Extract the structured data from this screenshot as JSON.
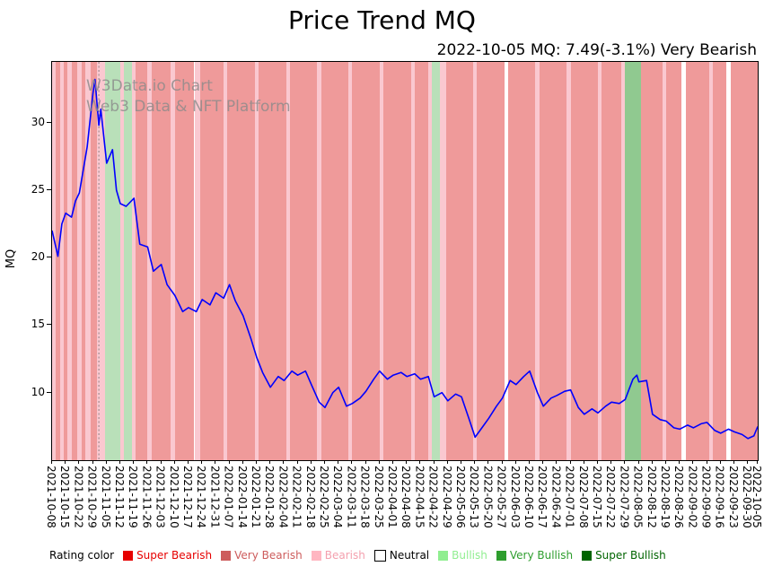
{
  "title": "Price Trend MQ",
  "subtitle": "2022-10-05 MQ: 7.49(-3.1%) Very Bearish",
  "watermark": {
    "line1": "W3Data.io Chart",
    "line2": "Web3 Data & NFT Platform"
  },
  "legend": {
    "label": "Rating color",
    "items": [
      {
        "key": "super_bearish",
        "label": "Super Bearish",
        "color": "#e60000",
        "text_color": "#e60000"
      },
      {
        "key": "very_bearish",
        "label": "Very Bearish",
        "color": "#cd5c5c",
        "text_color": "#cd5c5c"
      },
      {
        "key": "bearish",
        "label": "Bearish",
        "color": "#ffb6c1",
        "text_color": "#f4a0ae"
      },
      {
        "key": "neutral",
        "label": "Neutral",
        "color": "#ffffff",
        "text_color": "#000000"
      },
      {
        "key": "bullish",
        "label": "Bullish",
        "color": "#90ee90",
        "text_color": "#90ee90"
      },
      {
        "key": "very_bullish",
        "label": "Very Bullish",
        "color": "#2e9e2e",
        "text_color": "#2e9e2e"
      },
      {
        "key": "super_bullish",
        "label": "Super Bullish",
        "color": "#006400",
        "text_color": "#006400"
      }
    ]
  },
  "chart_data": {
    "type": "line",
    "title": "Price Trend MQ",
    "xlabel": "",
    "ylabel": "MQ",
    "ylim": [
      5.0,
      34.5
    ],
    "yticks": [
      10,
      15,
      20,
      25,
      30
    ],
    "line_color": "#0000ff",
    "marker_line": {
      "date": "2021-11-01",
      "color": "#666666"
    },
    "xticks": [
      "2021-10-08",
      "2021-10-15",
      "2021-10-22",
      "2021-10-29",
      "2021-11-05",
      "2021-11-12",
      "2021-11-19",
      "2021-11-26",
      "2021-12-03",
      "2021-12-10",
      "2021-12-17",
      "2021-12-24",
      "2021-12-31",
      "2022-01-07",
      "2022-01-14",
      "2022-01-21",
      "2022-01-28",
      "2022-02-04",
      "2022-02-11",
      "2022-02-18",
      "2022-02-25",
      "2022-03-04",
      "2022-03-11",
      "2022-03-18",
      "2022-03-25",
      "2022-04-01",
      "2022-04-08",
      "2022-04-15",
      "2022-04-22",
      "2022-04-29",
      "2022-05-06",
      "2022-05-13",
      "2022-05-20",
      "2022-05-27",
      "2022-06-03",
      "2022-06-10",
      "2022-06-17",
      "2022-06-24",
      "2022-07-01",
      "2022-07-08",
      "2022-07-15",
      "2022-07-22",
      "2022-07-29",
      "2022-08-05",
      "2022-08-12",
      "2022-08-19",
      "2022-08-26",
      "2022-09-02",
      "2022-09-09",
      "2022-09-16",
      "2022-09-23",
      "2022-09-30",
      "2022-10-05"
    ],
    "series": {
      "name": "MQ",
      "x": [
        "2021-10-08",
        "2021-10-11",
        "2021-10-13",
        "2021-10-15",
        "2021-10-18",
        "2021-10-20",
        "2021-10-22",
        "2021-10-26",
        "2021-10-29",
        "2021-10-30",
        "2021-11-01",
        "2021-11-02",
        "2021-11-05",
        "2021-11-08",
        "2021-11-10",
        "2021-11-12",
        "2021-11-15",
        "2021-11-19",
        "2021-11-22",
        "2021-11-26",
        "2021-11-29",
        "2021-12-03",
        "2021-12-06",
        "2021-12-10",
        "2021-12-14",
        "2021-12-17",
        "2021-12-21",
        "2021-12-24",
        "2021-12-28",
        "2021-12-31",
        "2022-01-04",
        "2022-01-07",
        "2022-01-10",
        "2022-01-14",
        "2022-01-18",
        "2022-01-21",
        "2022-01-24",
        "2022-01-28",
        "2022-02-01",
        "2022-02-04",
        "2022-02-08",
        "2022-02-11",
        "2022-02-15",
        "2022-02-18",
        "2022-02-22",
        "2022-02-25",
        "2022-03-01",
        "2022-03-04",
        "2022-03-08",
        "2022-03-11",
        "2022-03-15",
        "2022-03-18",
        "2022-03-22",
        "2022-03-25",
        "2022-03-29",
        "2022-04-01",
        "2022-04-05",
        "2022-04-08",
        "2022-04-12",
        "2022-04-15",
        "2022-04-19",
        "2022-04-22",
        "2022-04-26",
        "2022-04-29",
        "2022-05-03",
        "2022-05-06",
        "2022-05-10",
        "2022-05-13",
        "2022-05-17",
        "2022-05-20",
        "2022-05-24",
        "2022-05-27",
        "2022-05-31",
        "2022-06-03",
        "2022-06-07",
        "2022-06-10",
        "2022-06-14",
        "2022-06-17",
        "2022-06-21",
        "2022-06-24",
        "2022-06-28",
        "2022-07-01",
        "2022-07-05",
        "2022-07-08",
        "2022-07-12",
        "2022-07-15",
        "2022-07-19",
        "2022-07-22",
        "2022-07-26",
        "2022-07-29",
        "2022-08-02",
        "2022-08-04",
        "2022-08-05",
        "2022-08-09",
        "2022-08-12",
        "2022-08-16",
        "2022-08-19",
        "2022-08-23",
        "2022-08-26",
        "2022-08-30",
        "2022-09-02",
        "2022-09-06",
        "2022-09-09",
        "2022-09-13",
        "2022-09-16",
        "2022-09-20",
        "2022-09-23",
        "2022-09-27",
        "2022-09-30",
        "2022-10-03",
        "2022-10-05"
      ],
      "y": [
        22.0,
        20.1,
        22.5,
        23.3,
        23.0,
        24.2,
        24.8,
        28.2,
        32.2,
        33.2,
        29.8,
        31.0,
        27.0,
        28.0,
        25.0,
        24.0,
        23.8,
        24.4,
        21.0,
        20.8,
        19.0,
        19.5,
        18.0,
        17.2,
        16.0,
        16.3,
        16.0,
        16.9,
        16.5,
        17.4,
        17.0,
        18.0,
        16.8,
        15.7,
        14.0,
        12.6,
        11.5,
        10.4,
        11.2,
        10.9,
        11.6,
        11.3,
        11.6,
        10.6,
        9.3,
        8.9,
        10.0,
        10.4,
        9.0,
        9.2,
        9.6,
        10.1,
        11.0,
        11.6,
        11.0,
        11.3,
        11.5,
        11.2,
        11.4,
        11.0,
        11.2,
        9.7,
        10.0,
        9.4,
        9.9,
        9.7,
        8.0,
        6.7,
        7.5,
        8.1,
        9.0,
        9.6,
        10.9,
        10.6,
        11.2,
        11.6,
        10.0,
        9.0,
        9.6,
        9.8,
        10.1,
        10.2,
        8.9,
        8.4,
        8.8,
        8.5,
        9.0,
        9.3,
        9.2,
        9.5,
        11.0,
        11.3,
        10.8,
        10.9,
        8.4,
        8.0,
        7.9,
        7.4,
        7.3,
        7.6,
        7.4,
        7.7,
        7.8,
        7.2,
        7.0,
        7.3,
        7.1,
        6.9,
        6.6,
        6.8,
        7.49
      ]
    },
    "band_colors": {
      "super_bearish": "#f05545",
      "very_bearish": "#ef9a9a",
      "bearish": "#fac8d0",
      "neutral": "#ffffff",
      "bullish": "#b9e0b9",
      "very_bullish": "#90c990",
      "super_bullish": "#57a857"
    },
    "background_bands": [
      [
        "2021-10-08",
        "2021-10-10",
        "bearish"
      ],
      [
        "2021-10-10",
        "2021-10-12",
        "very_bearish"
      ],
      [
        "2021-10-12",
        "2021-10-14",
        "bearish"
      ],
      [
        "2021-10-14",
        "2021-10-16",
        "very_bearish"
      ],
      [
        "2021-10-16",
        "2021-10-18",
        "bearish"
      ],
      [
        "2021-10-18",
        "2021-10-21",
        "very_bearish"
      ],
      [
        "2021-10-21",
        "2021-10-23",
        "bearish"
      ],
      [
        "2021-10-23",
        "2021-10-25",
        "very_bearish"
      ],
      [
        "2021-10-25",
        "2021-10-28",
        "bearish"
      ],
      [
        "2021-10-28",
        "2021-10-31",
        "very_bearish"
      ],
      [
        "2021-10-31",
        "2021-11-04",
        "bearish"
      ],
      [
        "2021-11-04",
        "2021-11-12",
        "bullish"
      ],
      [
        "2021-11-12",
        "2021-11-14",
        "bearish"
      ],
      [
        "2021-11-14",
        "2021-11-18",
        "bullish"
      ],
      [
        "2021-11-18",
        "2021-11-20",
        "bearish"
      ],
      [
        "2021-11-20",
        "2021-11-26",
        "very_bearish"
      ],
      [
        "2021-11-26",
        "2021-11-28",
        "bearish"
      ],
      [
        "2021-11-28",
        "2021-12-08",
        "very_bearish"
      ],
      [
        "2021-12-08",
        "2021-12-10",
        "bearish"
      ],
      [
        "2021-12-10",
        "2021-12-20",
        "very_bearish"
      ],
      [
        "2021-12-20",
        "2021-12-23",
        "bearish"
      ],
      [
        "2021-12-23",
        "2022-01-04",
        "very_bearish"
      ],
      [
        "2022-01-04",
        "2022-01-06",
        "bearish"
      ],
      [
        "2022-01-06",
        "2022-01-20",
        "very_bearish"
      ],
      [
        "2022-01-20",
        "2022-01-22",
        "bearish"
      ],
      [
        "2022-01-22",
        "2022-02-05",
        "very_bearish"
      ],
      [
        "2022-02-05",
        "2022-02-07",
        "bearish"
      ],
      [
        "2022-02-07",
        "2022-02-21",
        "very_bearish"
      ],
      [
        "2022-02-21",
        "2022-02-23",
        "bearish"
      ],
      [
        "2022-02-23",
        "2022-03-09",
        "very_bearish"
      ],
      [
        "2022-03-09",
        "2022-03-11",
        "bearish"
      ],
      [
        "2022-03-11",
        "2022-03-25",
        "very_bearish"
      ],
      [
        "2022-03-25",
        "2022-03-27",
        "bearish"
      ],
      [
        "2022-03-27",
        "2022-04-10",
        "very_bearish"
      ],
      [
        "2022-04-10",
        "2022-04-12",
        "bearish"
      ],
      [
        "2022-04-12",
        "2022-04-19",
        "very_bearish"
      ],
      [
        "2022-04-19",
        "2022-04-21",
        "bearish"
      ],
      [
        "2022-04-21",
        "2022-04-25",
        "bullish"
      ],
      [
        "2022-04-25",
        "2022-04-28",
        "bearish"
      ],
      [
        "2022-04-28",
        "2022-05-12",
        "very_bearish"
      ],
      [
        "2022-05-12",
        "2022-05-14",
        "bearish"
      ],
      [
        "2022-05-14",
        "2022-05-28",
        "very_bearish"
      ],
      [
        "2022-05-28",
        "2022-05-30",
        "neutral"
      ],
      [
        "2022-05-30",
        "2022-06-13",
        "very_bearish"
      ],
      [
        "2022-06-13",
        "2022-06-15",
        "bearish"
      ],
      [
        "2022-06-15",
        "2022-06-29",
        "very_bearish"
      ],
      [
        "2022-06-29",
        "2022-07-01",
        "bearish"
      ],
      [
        "2022-07-01",
        "2022-07-15",
        "very_bearish"
      ],
      [
        "2022-07-15",
        "2022-07-17",
        "bearish"
      ],
      [
        "2022-07-17",
        "2022-07-27",
        "very_bearish"
      ],
      [
        "2022-07-27",
        "2022-07-29",
        "bearish"
      ],
      [
        "2022-07-29",
        "2022-08-06",
        "very_bullish"
      ],
      [
        "2022-08-06",
        "2022-08-17",
        "very_bearish"
      ],
      [
        "2022-08-17",
        "2022-08-19",
        "bearish"
      ],
      [
        "2022-08-19",
        "2022-08-27",
        "very_bearish"
      ],
      [
        "2022-08-27",
        "2022-08-29",
        "neutral"
      ],
      [
        "2022-08-29",
        "2022-09-10",
        "very_bearish"
      ],
      [
        "2022-09-10",
        "2022-09-12",
        "bearish"
      ],
      [
        "2022-09-12",
        "2022-09-19",
        "very_bearish"
      ],
      [
        "2022-09-19",
        "2022-09-21",
        "neutral"
      ],
      [
        "2022-09-21",
        "2022-10-05",
        "very_bearish"
      ]
    ]
  }
}
